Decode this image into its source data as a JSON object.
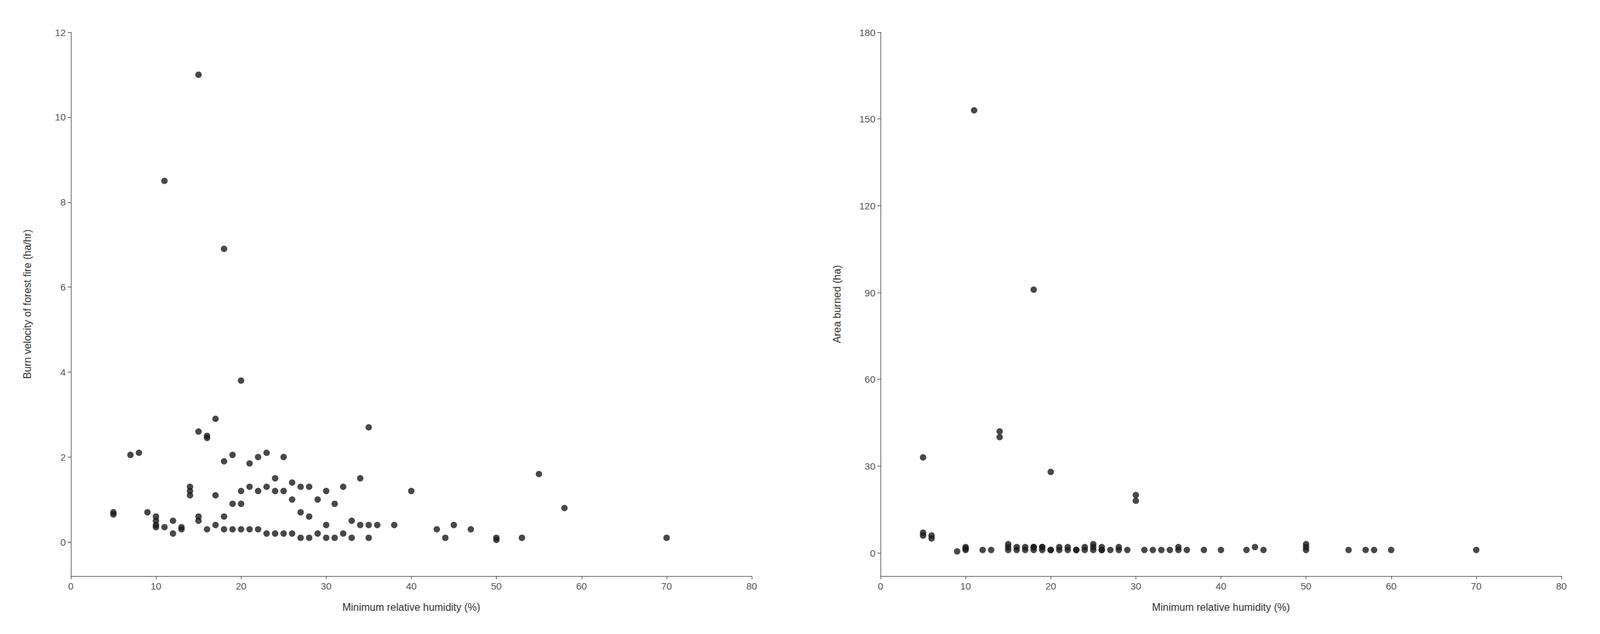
{
  "chart_data": [
    {
      "type": "scatter",
      "x": [
        5,
        5,
        7,
        8,
        9,
        10,
        10,
        10,
        10,
        11,
        11,
        12,
        12,
        13,
        13,
        14,
        14,
        14,
        15,
        15,
        15,
        15,
        16,
        16,
        16,
        17,
        17,
        17,
        18,
        18,
        18,
        18,
        19,
        19,
        19,
        20,
        20,
        20,
        20,
        21,
        21,
        21,
        22,
        22,
        22,
        23,
        23,
        23,
        24,
        24,
        24,
        25,
        25,
        25,
        26,
        26,
        26,
        27,
        27,
        27,
        28,
        28,
        28,
        29,
        29,
        30,
        30,
        30,
        31,
        31,
        32,
        32,
        33,
        33,
        34,
        34,
        35,
        35,
        35,
        36,
        38,
        40,
        43,
        44,
        45,
        47,
        50,
        50,
        53,
        55,
        58,
        70
      ],
      "values": [
        0.65,
        0.7,
        2.05,
        2.1,
        0.7,
        0.35,
        0.4,
        0.5,
        0.6,
        8.5,
        0.35,
        0.2,
        0.5,
        0.3,
        0.35,
        1.1,
        1.2,
        1.3,
        11.0,
        2.6,
        0.5,
        0.6,
        2.45,
        2.5,
        0.3,
        2.9,
        1.1,
        0.4,
        6.9,
        1.9,
        0.6,
        0.3,
        2.05,
        0.9,
        0.3,
        3.8,
        1.2,
        0.9,
        0.3,
        1.85,
        1.3,
        0.3,
        2.0,
        1.2,
        0.3,
        2.1,
        1.3,
        0.2,
        1.5,
        1.2,
        0.2,
        2.0,
        1.2,
        0.2,
        1.4,
        1.0,
        0.2,
        1.3,
        0.7,
        0.1,
        1.3,
        0.6,
        0.1,
        1.0,
        0.2,
        1.2,
        0.4,
        0.1,
        0.9,
        0.1,
        1.3,
        0.2,
        0.5,
        0.1,
        1.5,
        0.4,
        2.7,
        0.4,
        0.1,
        0.4,
        0.4,
        1.2,
        0.3,
        0.1,
        0.4,
        0.3,
        0.05,
        0.1,
        0.1,
        1.6,
        0.8,
        0.1
      ],
      "xlabel": "Minimum relative humidity (%)",
      "ylabel": "Burn velocity of forest fire (ha/hr)",
      "xlim": [
        0,
        80
      ],
      "xticks": [
        0,
        10,
        20,
        30,
        40,
        50,
        60,
        70,
        80
      ],
      "ylim": [
        -0.8,
        12
      ],
      "yticks": [
        0,
        2,
        4,
        6,
        8,
        10,
        12
      ],
      "color": "#1a1a1a",
      "marker": "circle",
      "grid": false
    },
    {
      "type": "scatter",
      "x": [
        5,
        5,
        5,
        6,
        6,
        9,
        10,
        10,
        10,
        11,
        12,
        13,
        14,
        14,
        15,
        15,
        15,
        16,
        16,
        17,
        17,
        18,
        18,
        18,
        18,
        19,
        19,
        19,
        20,
        20,
        20,
        21,
        21,
        22,
        22,
        23,
        23,
        24,
        24,
        25,
        25,
        25,
        26,
        26,
        26,
        27,
        28,
        28,
        29,
        30,
        30,
        31,
        32,
        33,
        34,
        35,
        35,
        36,
        38,
        40,
        43,
        44,
        45,
        50,
        50,
        50,
        55,
        57,
        58,
        60,
        70
      ],
      "values": [
        6,
        7,
        33,
        5,
        6,
        0.5,
        1,
        1.5,
        2,
        153,
        1,
        1,
        42,
        40,
        1,
        2,
        3,
        1,
        2,
        1,
        2,
        91,
        1,
        2,
        2,
        1,
        2,
        2,
        28,
        1,
        1,
        1,
        2,
        1,
        2,
        1,
        1,
        1,
        2,
        1,
        2,
        3,
        1,
        2,
        1,
        1,
        1,
        2,
        1,
        18,
        20,
        1,
        1,
        1,
        1,
        1,
        2,
        1,
        1,
        1,
        1,
        2,
        1,
        1,
        2,
        3,
        1,
        1,
        1,
        1,
        1
      ],
      "xlabel": "Minimum relative humidity (%)",
      "ylabel": "Area burned (ha)",
      "xlim": [
        0,
        80
      ],
      "xticks": [
        0,
        10,
        20,
        30,
        40,
        50,
        60,
        70,
        80
      ],
      "ylim": [
        -8,
        180
      ],
      "yticks": [
        0,
        30,
        60,
        90,
        120,
        150,
        180
      ],
      "color": "#1a1a1a",
      "marker": "circle",
      "grid": false
    }
  ]
}
